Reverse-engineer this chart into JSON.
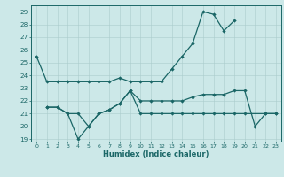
{
  "xlabel": "Humidex (Indice chaleur)",
  "bg_color": "#cce8e8",
  "grid_color": "#aacccc",
  "line_color": "#1a6666",
  "xlim": [
    -0.5,
    23.5
  ],
  "ylim": [
    18.8,
    29.5
  ],
  "yticks": [
    19,
    20,
    21,
    22,
    23,
    24,
    25,
    26,
    27,
    28,
    29
  ],
  "xticks": [
    0,
    1,
    2,
    3,
    4,
    5,
    6,
    7,
    8,
    9,
    10,
    11,
    12,
    13,
    14,
    15,
    16,
    17,
    18,
    19,
    20,
    21,
    22,
    23
  ],
  "line1_x": [
    0,
    1,
    2,
    3,
    4,
    5,
    6,
    7,
    8,
    9,
    10,
    11,
    12,
    13,
    14,
    15,
    16,
    17,
    18,
    19
  ],
  "line1_y": [
    25.5,
    23.5,
    23.5,
    23.5,
    23.5,
    23.5,
    23.5,
    23.5,
    23.8,
    23.5,
    23.5,
    23.5,
    23.5,
    24.5,
    25.5,
    26.5,
    29.0,
    28.8,
    27.5,
    28.3
  ],
  "line2_x": [
    1,
    2,
    3,
    4,
    5,
    6,
    7,
    8,
    9,
    10,
    11,
    12,
    13,
    14,
    15,
    16,
    17,
    18,
    19,
    20,
    21,
    22,
    23
  ],
  "line2_y": [
    21.5,
    21.5,
    21.0,
    21.0,
    20.0,
    21.0,
    21.3,
    21.8,
    22.8,
    22.0,
    22.0,
    22.0,
    22.0,
    22.0,
    22.3,
    22.5,
    22.5,
    22.5,
    22.8,
    22.8,
    20.0,
    21.0,
    21.0
  ],
  "line3_x": [
    1,
    2,
    3,
    4,
    5,
    6,
    7,
    8,
    9,
    10,
    11,
    12,
    13,
    14,
    15,
    16,
    17,
    18,
    19,
    20,
    22,
    23
  ],
  "line3_y": [
    21.5,
    21.5,
    21.0,
    19.0,
    20.0,
    21.0,
    21.3,
    21.8,
    22.8,
    21.0,
    21.0,
    21.0,
    21.0,
    21.0,
    21.0,
    21.0,
    21.0,
    21.0,
    21.0,
    21.0,
    21.0,
    21.0
  ]
}
